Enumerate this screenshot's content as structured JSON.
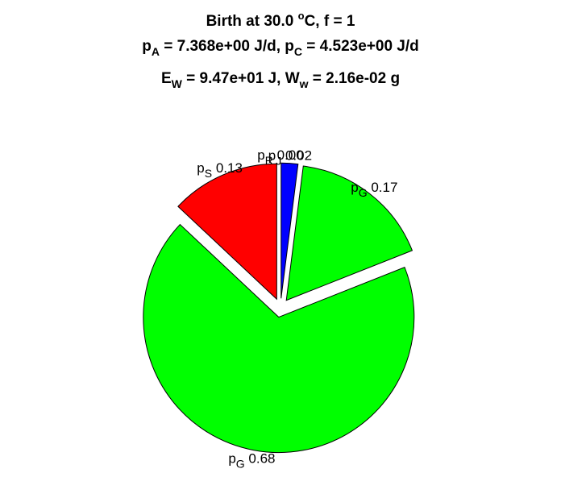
{
  "chart_data": {
    "type": "pie",
    "title": {
      "line1": {
        "pre": "Birth at 30.0 ",
        "sup": "o",
        "post": "C, f = 1"
      },
      "line2": {
        "a_base": "p",
        "a_sub": "A",
        "a_val": " = 7.368e+00 J/d, ",
        "c_base": "p",
        "c_sub": "C",
        "c_val": " = 4.523e+00 J/d"
      },
      "line3": {
        "e_base": "E",
        "e_sub": "W",
        "e_val": " = 9.47e+01 J, ",
        "w_base": "W",
        "w_sub": "w",
        "w_val": " = 2.16e-02 g"
      }
    },
    "slices": [
      {
        "base": "p",
        "sub": "J",
        "value_label": "0.02",
        "value": 0.02,
        "color": "#0000ff"
      },
      {
        "base": "p",
        "sub": "G",
        "value_label": "0.17",
        "value": 0.17,
        "color": "#00ff00"
      },
      {
        "base": "p",
        "sub": "G",
        "value_label": "0.68",
        "value": 0.68,
        "color": "#00ff00"
      },
      {
        "base": "p",
        "sub": "S",
        "value_label": "0.13",
        "value": 0.13,
        "color": "#ff0000"
      },
      {
        "base": "p",
        "sub": "R",
        "value_label": "0.00",
        "value": 0.0,
        "color": "#ff00ff"
      }
    ]
  }
}
